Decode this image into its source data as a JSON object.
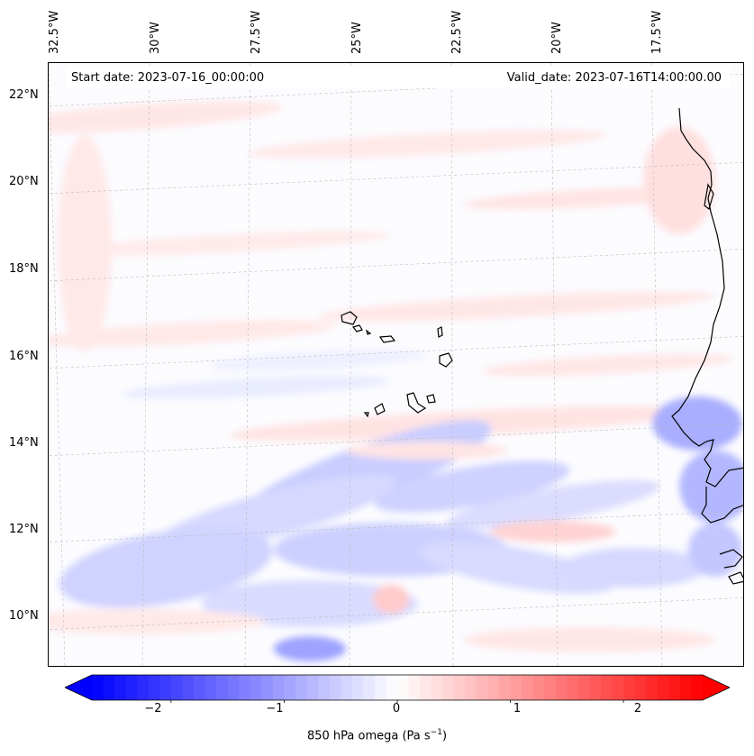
{
  "map": {
    "start_date": "Start date: 2023-07-16_00:00:00",
    "valid_date": "Valid_date: 2023-07-16T14:00:00.00",
    "lon_labels": [
      "32.5°W",
      "30°W",
      "27.5°W",
      "25°W",
      "22.5°W",
      "20°W",
      "17.5°W"
    ],
    "lat_labels": [
      "22°N",
      "20°N",
      "18°N",
      "16°N",
      "14°N",
      "12°N",
      "10°N"
    ],
    "projection": "lambert-conformal",
    "gridlines": true
  },
  "colorbar": {
    "label_main": "850 hPa omega (Pa s",
    "label_exp": "−1",
    "label_close": ")",
    "ticks": [
      "−2",
      "−1",
      "0",
      "1",
      "2"
    ],
    "range": [
      -2.7,
      2.7
    ],
    "cmap": "bwr",
    "extend": "both",
    "colors": {
      "low": "#0000ff",
      "mid": "#ffffff",
      "high": "#ff0000"
    }
  },
  "field_description": {
    "variable": "850 hPa omega",
    "units": "Pa s^-1"
  }
}
